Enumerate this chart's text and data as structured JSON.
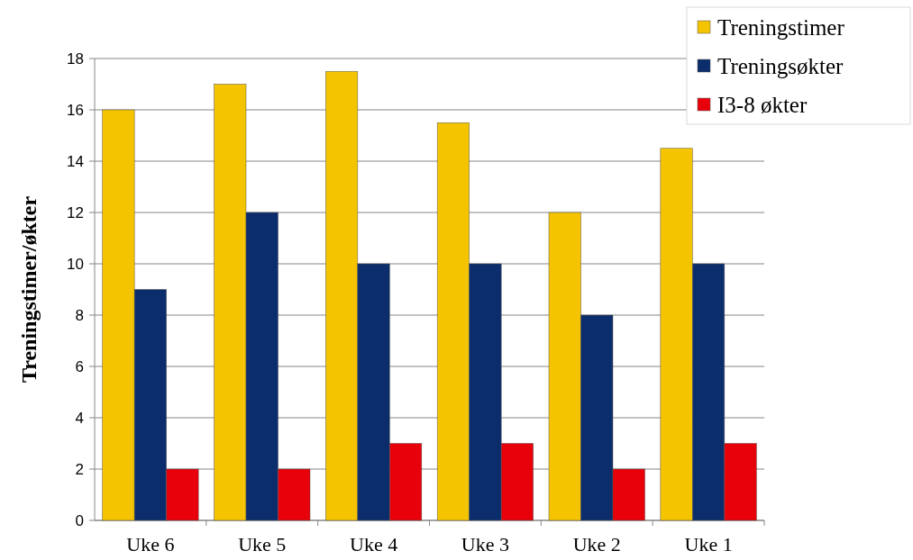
{
  "chart_data": {
    "type": "bar",
    "ylabel": "Treningstimer/økter",
    "categories": [
      "Uke 6",
      "Uke 5",
      "Uke 4",
      "Uke 3",
      "Uke 2",
      "Uke 1"
    ],
    "series": [
      {
        "name": "Treningstimer",
        "color": "#f5c400",
        "values": [
          16,
          17,
          17.5,
          15.5,
          12,
          14.5
        ]
      },
      {
        "name": "Treningsøkter",
        "color": "#0c2d6b",
        "values": [
          9,
          12,
          10,
          10,
          8,
          10
        ]
      },
      {
        "name": "I3-8 økter",
        "color": "#e8000a",
        "values": [
          2,
          2,
          3,
          3,
          2,
          3
        ]
      }
    ],
    "ylim": [
      0,
      18
    ],
    "yticks": [
      0,
      2,
      4,
      6,
      8,
      10,
      12,
      14,
      16,
      18
    ],
    "grid": "y",
    "legend": "top right"
  }
}
